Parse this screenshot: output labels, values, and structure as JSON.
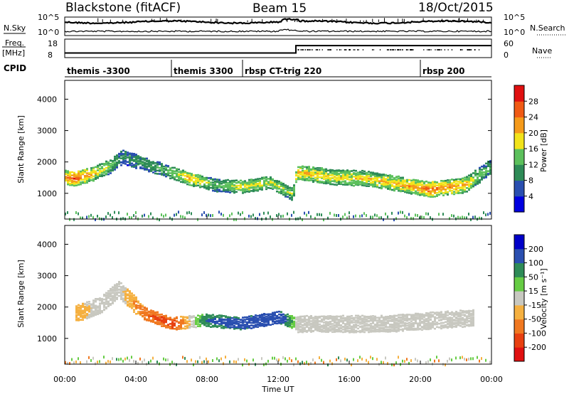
{
  "header": {
    "station": "Blackstone (fitACF)",
    "beam": "Beam 15",
    "date": "18/Oct/2015"
  },
  "noise_panel": {
    "left_label": "N.Sky",
    "right_label": "N.Search",
    "left_ticks": [
      "10^5",
      "10^0"
    ],
    "right_ticks": [
      "10^5",
      "10^0"
    ]
  },
  "freq_panel": {
    "left_label_1": "Freq.",
    "left_label_2": "[MHz]",
    "right_label": "Nave",
    "left_ticks": [
      "18",
      "8"
    ],
    "right_ticks": [
      "60",
      "0"
    ],
    "freq_levels_mhz": [
      {
        "from_hour": 0,
        "to_hour": 13.0,
        "value": 10.5
      },
      {
        "from_hour": 13.0,
        "to_hour": 24,
        "value": 14.5
      }
    ]
  },
  "cpid_panel": {
    "label": "CPID",
    "programs": [
      {
        "start_hour": 0.0,
        "name": "themis -3300"
      },
      {
        "start_hour": 6.0,
        "name": "themis 3300"
      },
      {
        "start_hour": 10.0,
        "name": "rbsp CT-trig 220"
      },
      {
        "start_hour": 20.0,
        "name": "rbsp 200"
      }
    ]
  },
  "power_colorbar": {
    "label": "Power [dB]",
    "ticks": [
      "28",
      "24",
      "20",
      "16",
      "12",
      "8",
      "4"
    ],
    "colors": [
      "#0000e0",
      "#2a4fb0",
      "#2e8b57",
      "#5cc05c",
      "#f2e31a",
      "#f59a1a",
      "#f05a14",
      "#e01010"
    ]
  },
  "velocity_colorbar": {
    "label": "Velocity [m s⁻¹]",
    "ticks": [
      "200",
      "100",
      "50",
      "15",
      "-15",
      "-50",
      "-100",
      "-200"
    ],
    "colors": [
      "#0000c8",
      "#2a4fb0",
      "#2e8b57",
      "#66cc44",
      "#c8c8c0",
      "#f5b040",
      "#f07820",
      "#e84010",
      "#e01010"
    ]
  },
  "chart_data": {
    "type": "heatmap",
    "x_axis": {
      "label": "Time UT",
      "ticks": [
        "00:00",
        "04:00",
        "08:00",
        "12:00",
        "16:00",
        "20:00",
        "00:00"
      ],
      "range_hours": [
        0,
        24
      ]
    },
    "y_axis": {
      "label": "Slant Range [km]",
      "ticks": [
        "1000",
        "2000",
        "3000",
        "4000"
      ],
      "range_km": [
        180,
        4600
      ]
    },
    "panels": [
      {
        "parameter": "Power",
        "units": "dB",
        "scale": [
          0,
          30
        ],
        "main_echo_band": [
          {
            "hour": 0.0,
            "range_km": 1550,
            "power_db": 22
          },
          {
            "hour": 0.5,
            "range_km": 1500,
            "power_db": 26
          },
          {
            "hour": 1.5,
            "range_km": 1650,
            "power_db": 20
          },
          {
            "hour": 2.5,
            "range_km": 1900,
            "power_db": 14
          },
          {
            "hour": 3.2,
            "range_km": 2200,
            "power_db": 10
          },
          {
            "hour": 5.5,
            "range_km": 1800,
            "power_db": 12
          },
          {
            "hour": 7.0,
            "range_km": 1500,
            "power_db": 20
          },
          {
            "hour": 8.5,
            "range_km": 1300,
            "power_db": 12
          },
          {
            "hour": 10.0,
            "range_km": 1250,
            "power_db": 18
          },
          {
            "hour": 11.5,
            "range_km": 1400,
            "power_db": 16
          },
          {
            "hour": 12.8,
            "range_km": 1000,
            "power_db": 14
          },
          {
            "hour": 13.0,
            "range_km": 1700,
            "power_db": 20
          },
          {
            "hour": 15.0,
            "range_km": 1550,
            "power_db": 18
          },
          {
            "hour": 17.0,
            "range_km": 1500,
            "power_db": 18
          },
          {
            "hour": 19.0,
            "range_km": 1300,
            "power_db": 20
          },
          {
            "hour": 20.5,
            "range_km": 1150,
            "power_db": 24
          },
          {
            "hour": 22.5,
            "range_km": 1300,
            "power_db": 20
          },
          {
            "hour": 24.0,
            "range_km": 1900,
            "power_db": 10
          }
        ]
      },
      {
        "parameter": "Velocity",
        "units": "m s-1",
        "scale": [
          -200,
          200
        ],
        "main_echo_band": [
          {
            "hour": 0.5,
            "range_km": 1800,
            "velocity": -40
          },
          {
            "hour": 2.0,
            "range_km": 2100,
            "velocity": 0
          },
          {
            "hour": 3.0,
            "range_km": 2600,
            "velocity": 0
          },
          {
            "hour": 4.5,
            "range_km": 1800,
            "velocity": -100
          },
          {
            "hour": 6.0,
            "range_km": 1500,
            "velocity": -150
          },
          {
            "hour": 8.0,
            "range_km": 1600,
            "velocity": 120
          },
          {
            "hour": 10.0,
            "range_km": 1500,
            "velocity": 180
          },
          {
            "hour": 12.0,
            "range_km": 1700,
            "velocity": 200
          },
          {
            "hour": 13.0,
            "range_km": 1500,
            "velocity": 0
          },
          {
            "hour": 18.0,
            "range_km": 1500,
            "velocity": 0
          },
          {
            "hour": 23.0,
            "range_km": 1700,
            "velocity": 0
          }
        ]
      }
    ]
  }
}
